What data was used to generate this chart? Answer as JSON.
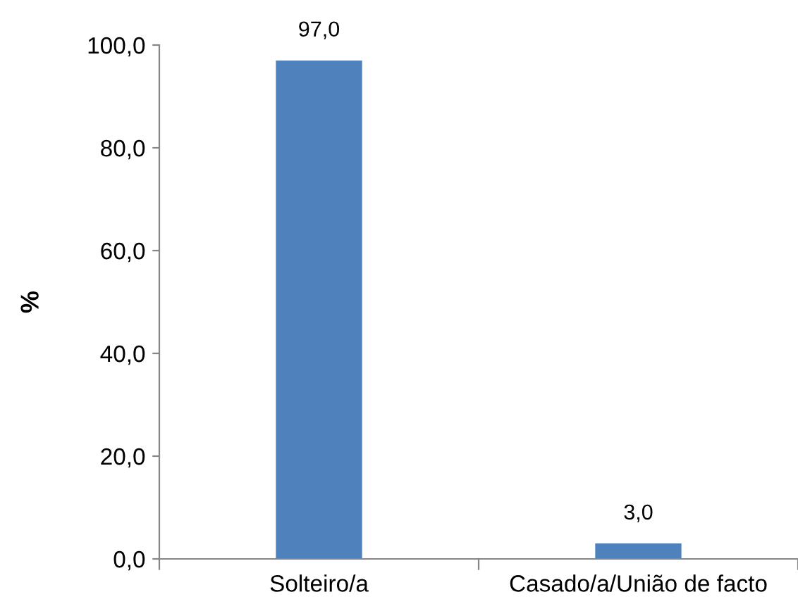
{
  "chart_data": {
    "type": "bar",
    "ylabel": "%",
    "categories": [
      "Solteiro/a",
      "Casado/a/União de facto"
    ],
    "values": [
      97.0,
      3.0
    ],
    "color": "#4f81bd",
    "value_labels": [
      "97,0",
      "3,0"
    ],
    "ylim": [
      0,
      100
    ],
    "yticks": [
      {
        "value": 0,
        "label": "0,0"
      },
      {
        "value": 20,
        "label": "20,0"
      },
      {
        "value": 40,
        "label": "40,0"
      },
      {
        "value": 60,
        "label": "60,0"
      },
      {
        "value": 80,
        "label": "80,0"
      },
      {
        "value": 100,
        "label": "100,0"
      }
    ],
    "grid": false,
    "legend": false
  }
}
